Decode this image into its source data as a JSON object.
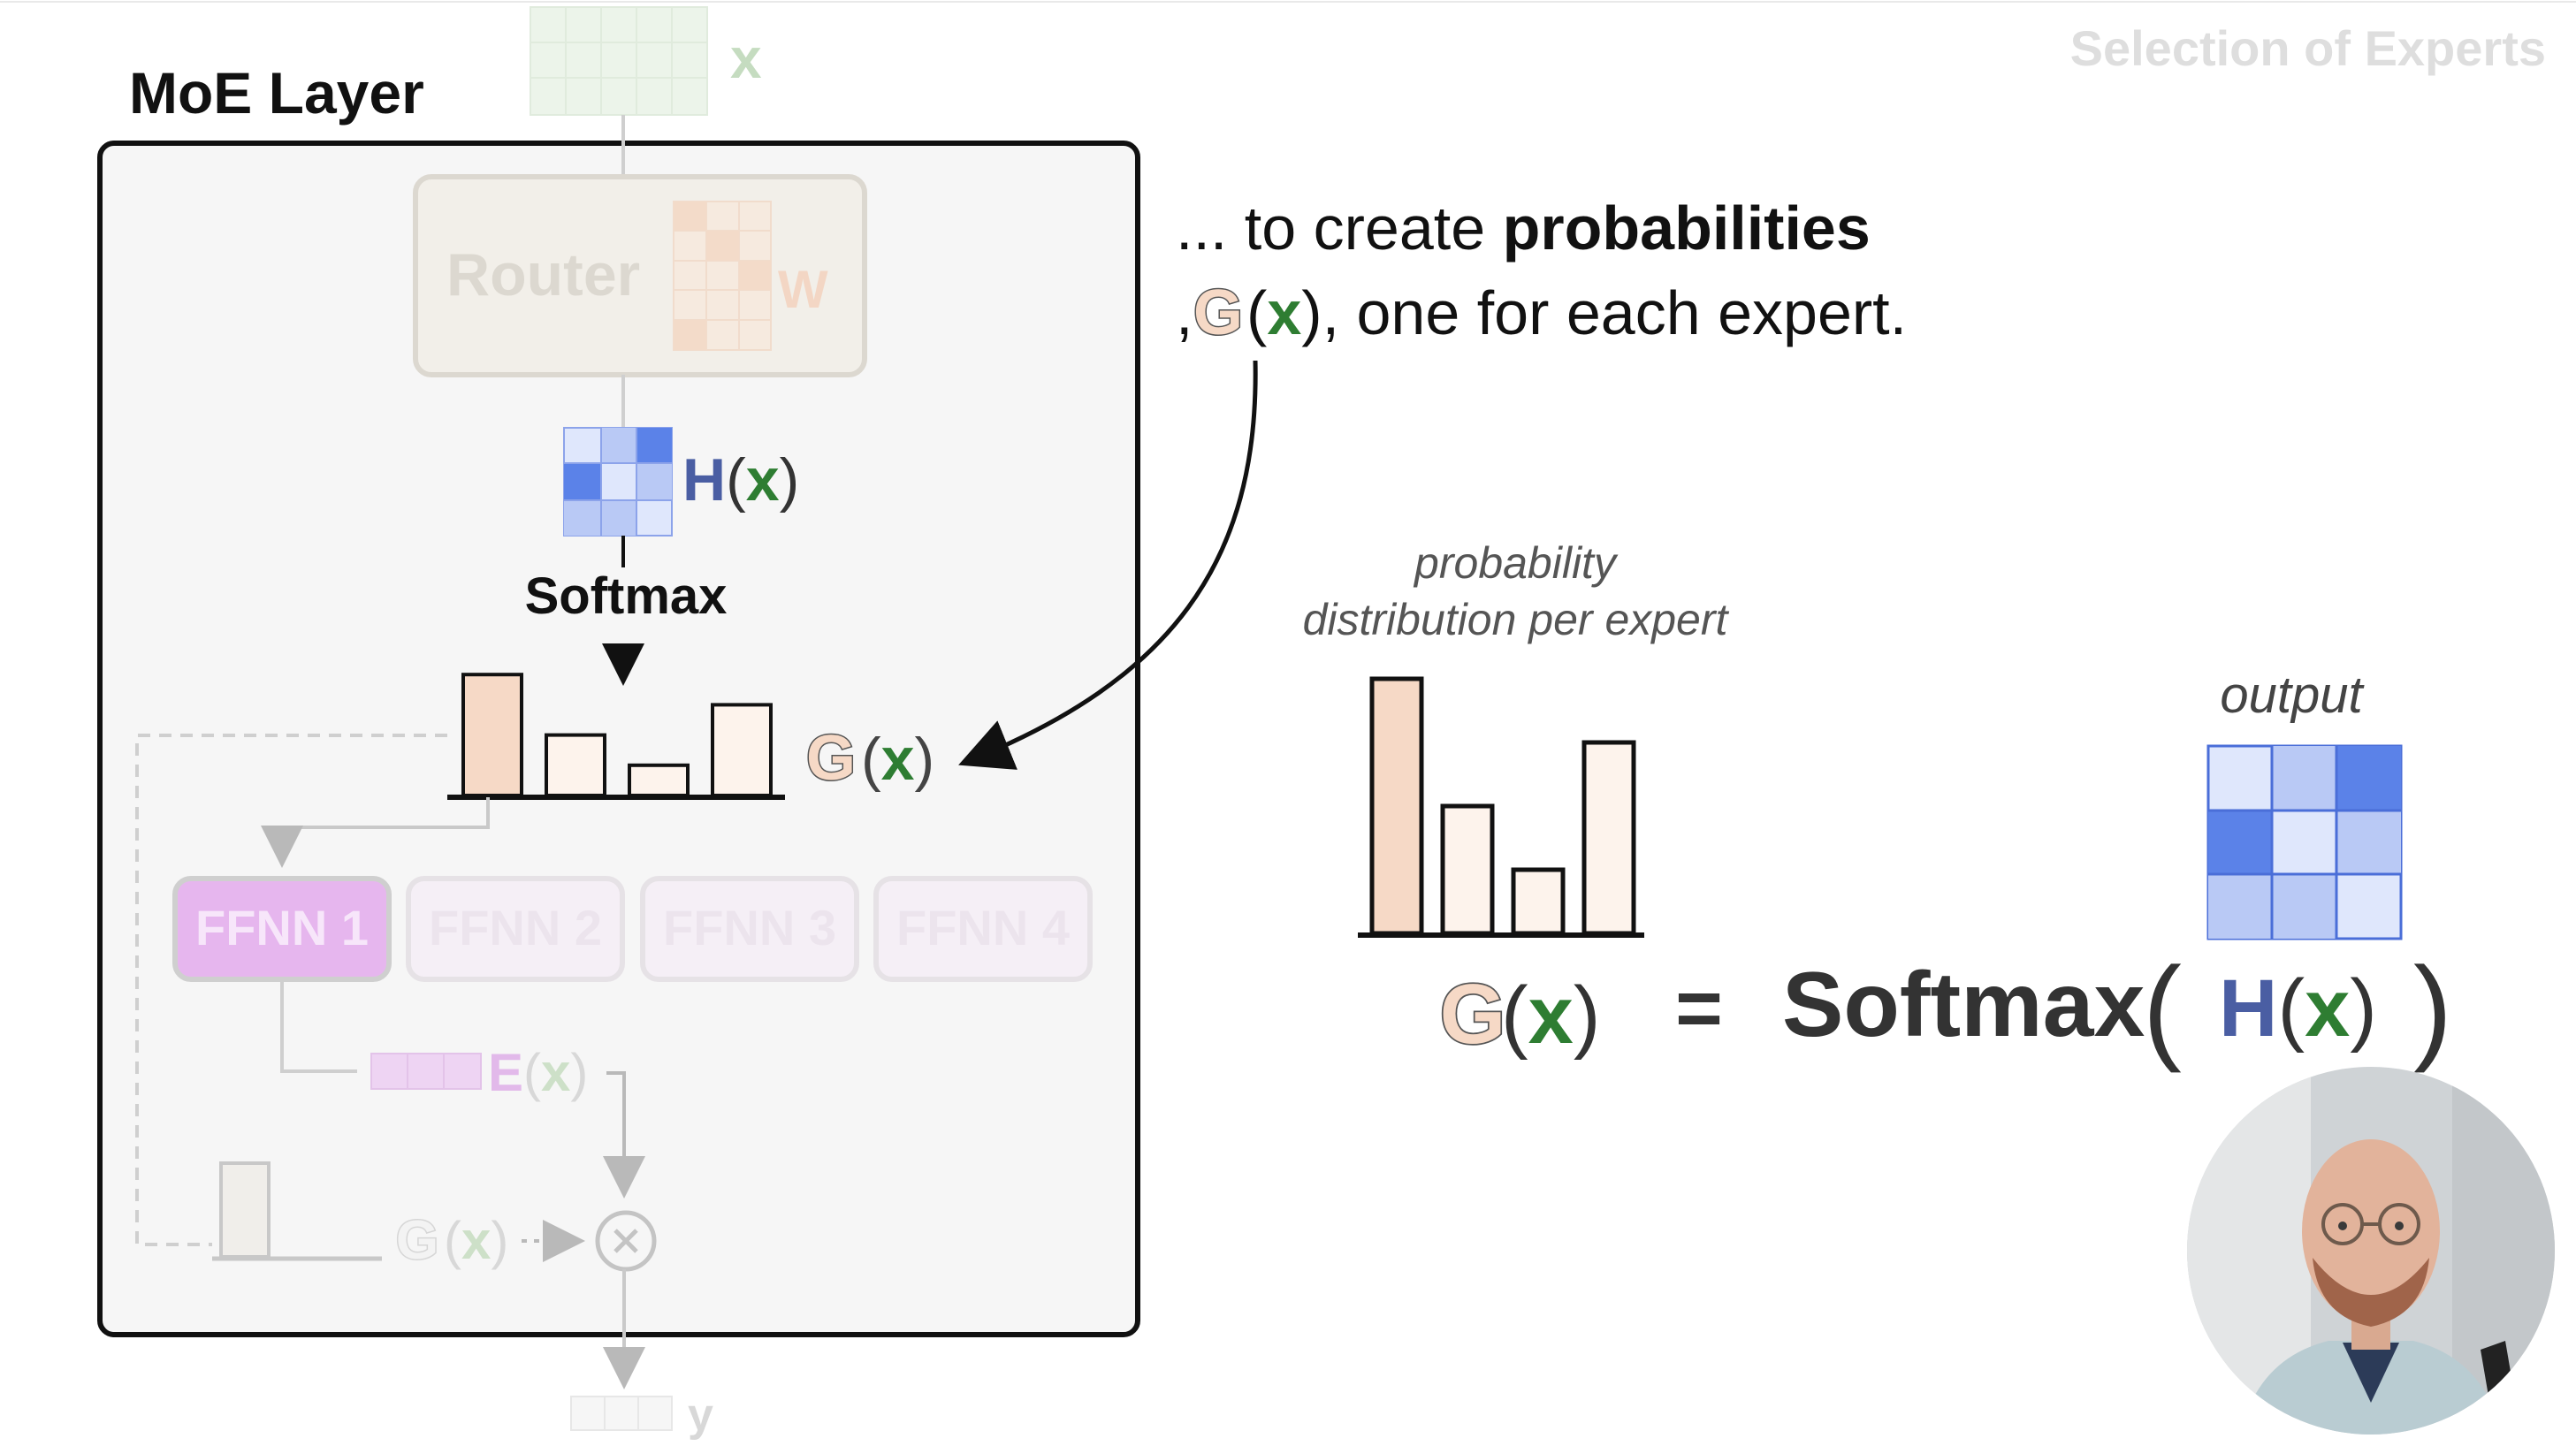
{
  "header": {
    "slide_title": "Selection of Experts"
  },
  "moe": {
    "layer_title": "MoE Layer",
    "input_label": "x",
    "router_label": "Router",
    "weight_label": "W",
    "hidden_label": {
      "fn": "H",
      "open": "(",
      "arg": "x",
      "close": ")"
    },
    "softmax_label": "Softmax",
    "gate_label": {
      "open": "(",
      "arg": "x",
      "close": ")"
    },
    "experts": [
      "FFNN 1",
      "FFNN 2",
      "FFNN 3",
      "FFNN 4"
    ],
    "expert_output_label": {
      "fn": "E",
      "open": "(",
      "arg": "x",
      "close": ")"
    },
    "output_label": "y",
    "gate_probabilities": [
      0.36,
      0.18,
      0.09,
      0.27
    ]
  },
  "callout": {
    "line1_prefix": "... to create ",
    "line1_bold": "probabilities",
    "line2_lead": ",",
    "line2_args": [
      "(",
      "x",
      ")"
    ],
    "line2_rest": ", one for each expert."
  },
  "distribution": {
    "caption_line1": "probability",
    "caption_line2": "distribution per expert",
    "values": [
      0.36,
      0.18,
      0.09,
      0.27
    ]
  },
  "output_caption": "output",
  "equation": {
    "gate_parts": [
      "(",
      "x",
      ")"
    ],
    "equals": "=",
    "softmax": "Softmax",
    "lparen": "(",
    "hidden": {
      "fn": "H",
      "open": "(",
      "arg": "x",
      "close": ")"
    },
    "rparen": ")"
  },
  "colors": {
    "accent_green": "#2e7d32",
    "hidden_blue": "#4a5ea3",
    "matrix_blue_dark": "#5b82e8",
    "matrix_blue_mid": "#b9c9f5",
    "matrix_blue_light": "#dfe7fc",
    "bar_fill": "#f6d9c6",
    "bar_fill_light": "#fdf3ec",
    "expert_active": "#e6b6ee"
  },
  "icons": [
    "gate-g-icon",
    "multiply-icon",
    "webcam-presenter"
  ]
}
